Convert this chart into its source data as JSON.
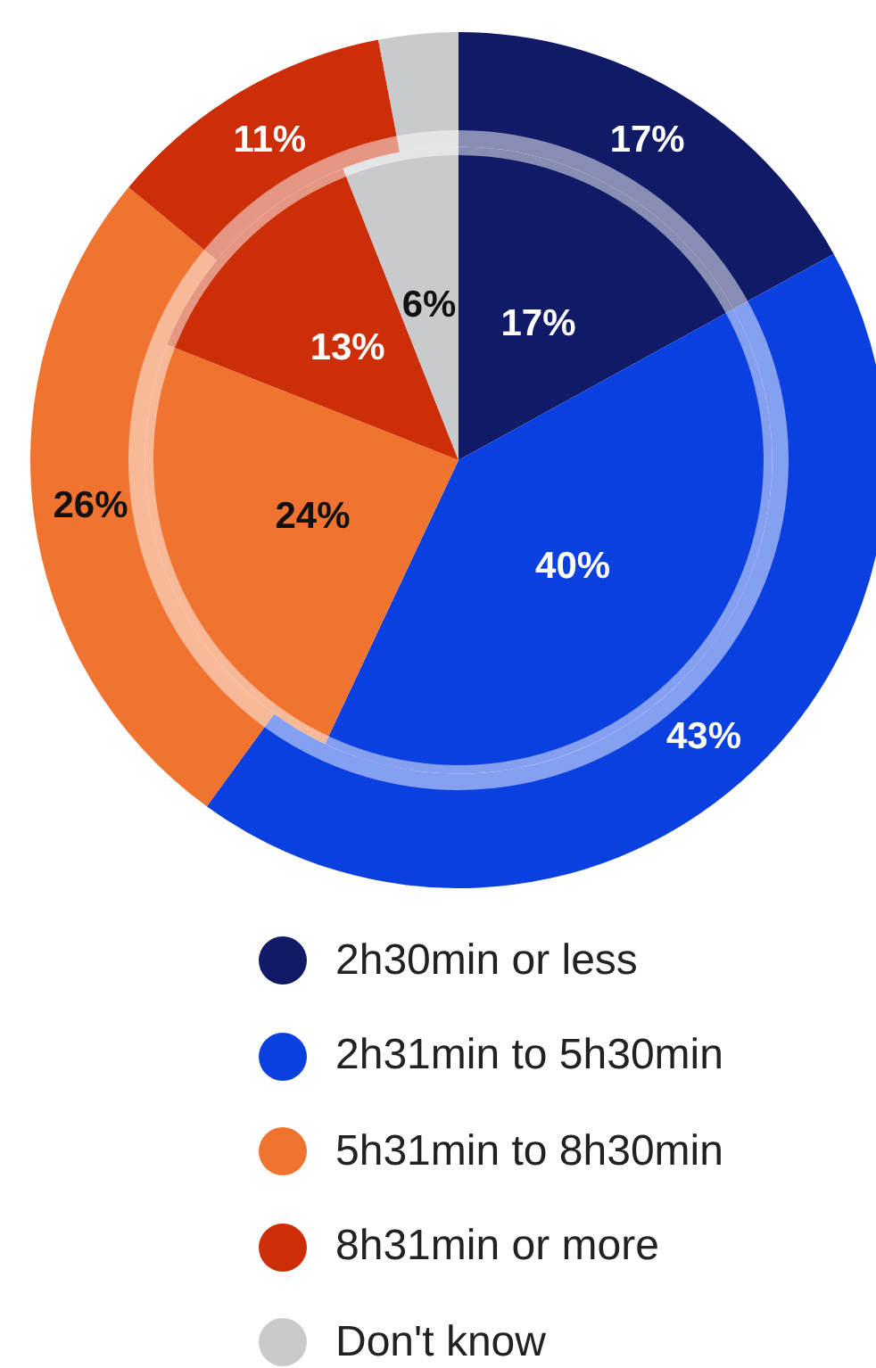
{
  "chart_data": {
    "type": "donut",
    "categories": [
      "2h30min or less",
      "2h31min to 5h30min",
      "5h31min to 8h30min",
      "8h31min or more",
      "Don't know"
    ],
    "colors": [
      "#101a66",
      "#0a40e0",
      "#f07330",
      "#cc2e08",
      "#c8cacc"
    ],
    "series": [
      {
        "values": [
          17,
          43,
          26,
          11,
          3
        ],
        "value_labels": [
          "17%",
          "43%",
          "26%",
          "11%",
          null
        ]
      },
      {
        "values": [
          17,
          40,
          24,
          13,
          6
        ],
        "value_labels": [
          "17%",
          "40%",
          "24%",
          "13%",
          "6%"
        ]
      }
    ],
    "legend": "bottom"
  }
}
